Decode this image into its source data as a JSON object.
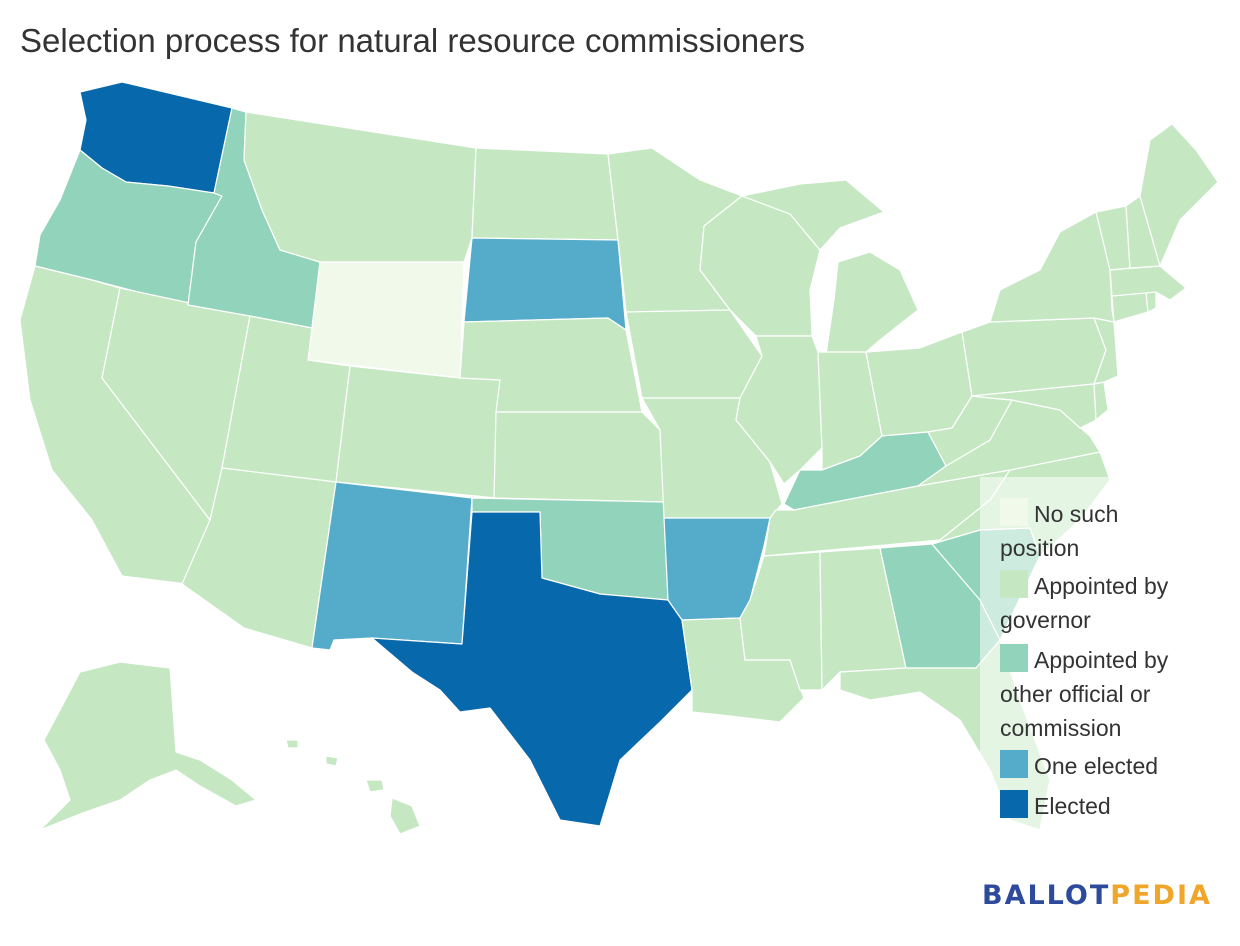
{
  "title": "Selection process for natural resource commissioners",
  "colors": {
    "no_position": "#f1f9eb",
    "governor": "#c5e8c3",
    "other": "#92d3bb",
    "one_elected": "#55acca",
    "elected": "#0868ac"
  },
  "legend": {
    "items": [
      {
        "label": "No such position",
        "line1": "No such",
        "line2": "position",
        "category": "no_position"
      },
      {
        "label": "Appointed by governor",
        "line1": "Appointed by",
        "line2": "governor",
        "category": "governor"
      },
      {
        "label": "Appointed by other official or commission",
        "line1": "Appointed by",
        "line2": "other official or",
        "line3": "commission",
        "category": "other"
      },
      {
        "label": "One elected",
        "line1": "One elected",
        "category": "one_elected"
      },
      {
        "label": "Elected",
        "line1": "Elected",
        "category": "elected"
      }
    ]
  },
  "states": {
    "WA": "elected",
    "OR": "other",
    "CA": "governor",
    "NV": "governor",
    "ID": "other",
    "MT": "governor",
    "WY": "no_position",
    "UT": "governor",
    "CO": "governor",
    "AZ": "governor",
    "NM": "one_elected",
    "ND": "governor",
    "SD": "one_elected",
    "NE": "governor",
    "KS": "governor",
    "OK": "other",
    "TX": "elected",
    "MN": "governor",
    "IA": "governor",
    "MO": "governor",
    "AR": "one_elected",
    "LA": "governor",
    "WI": "governor",
    "IL": "governor",
    "MI": "governor",
    "IN": "governor",
    "OH": "governor",
    "KY": "other",
    "TN": "governor",
    "MS": "governor",
    "AL": "governor",
    "GA": "other",
    "FL": "governor",
    "SC": "other",
    "NC": "governor",
    "VA": "governor",
    "WV": "governor",
    "PA": "governor",
    "NY": "governor",
    "VT": "governor",
    "NH": "governor",
    "ME": "governor",
    "MA": "governor",
    "CT": "governor",
    "RI": "governor",
    "NJ": "governor",
    "DE": "governor",
    "MD": "governor",
    "AK": "governor",
    "HI": "governor"
  },
  "logo": {
    "part1": "BALLOT",
    "part2": "PEDIA"
  }
}
